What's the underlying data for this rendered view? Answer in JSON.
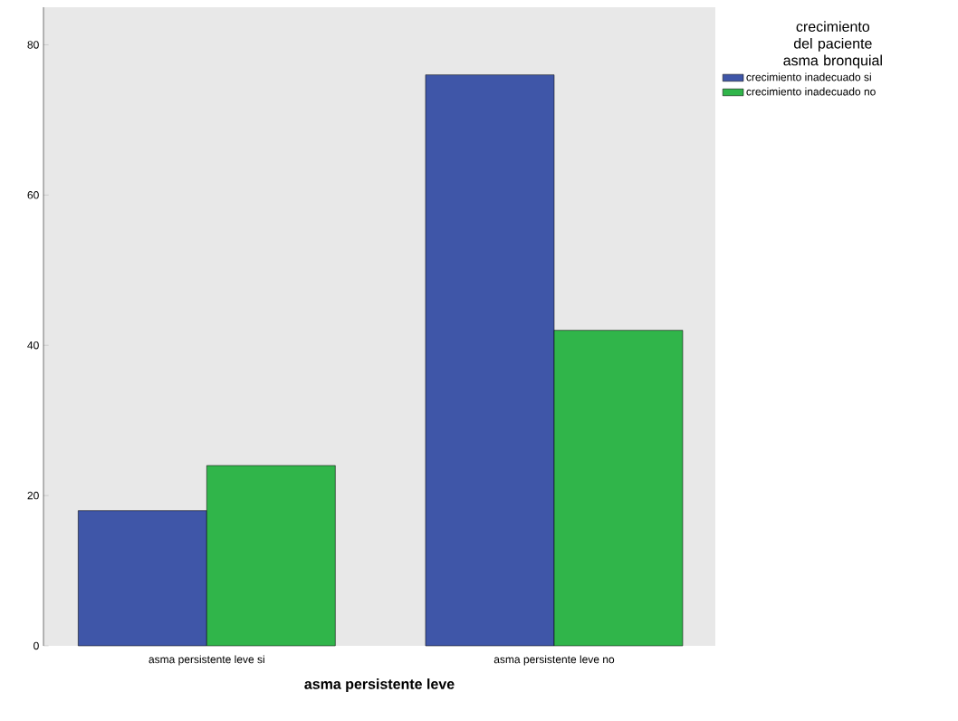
{
  "chart_data": {
    "type": "bar",
    "xlabel": "asma persistente leve",
    "legend_title": "crecimiento del paciente asma bronquial",
    "categories": [
      "asma persistente leve si",
      "asma persistente leve no"
    ],
    "series": [
      {
        "name": "crecimiento inadecuado si",
        "color": "#3f56a8",
        "values": [
          18,
          76
        ]
      },
      {
        "name": "crecimiento inadecuado no",
        "color": "#30b54a",
        "values": [
          24,
          42
        ]
      }
    ],
    "ylim": [
      0,
      85
    ],
    "yticks": [
      0,
      20,
      40,
      60,
      80
    ],
    "grid": false,
    "legend": "top right"
  }
}
